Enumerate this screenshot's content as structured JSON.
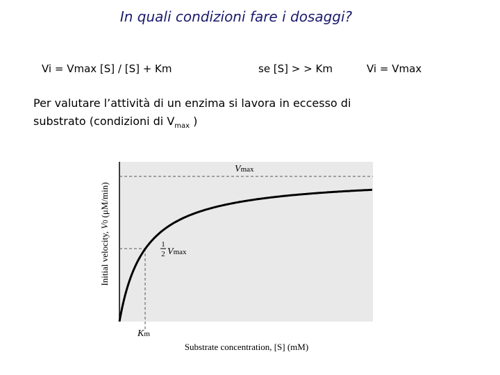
{
  "header": {
    "title": "In quali condizioni fare i dosaggi?"
  },
  "formulas": [
    "Vi = Vmax [S] / [S] + Km",
    "se [S] > > Km",
    "Vi =  Vmax"
  ],
  "paragraph": {
    "lines": [
      "Per valutare l’attività di un enzima si lavora in eccesso di",
      "substrato (condizioni di V"
    ],
    "subscript": "max",
    "tail": ")"
  },
  "figure": {
    "vmax_label": {
      "main": "V",
      "sub": "max"
    },
    "half_vmax_label": {
      "numerator": "1",
      "denominator": "2",
      "main": "V",
      "sub": "max"
    },
    "km_label": {
      "main": "K",
      "sub": "m"
    },
    "y_axis": {
      "before": "Initial velocity, ",
      "main": "V",
      "sub": "0",
      "after": " (μM/min)"
    },
    "x_axis": "Substrate concentration, [S] (mM)"
  }
}
